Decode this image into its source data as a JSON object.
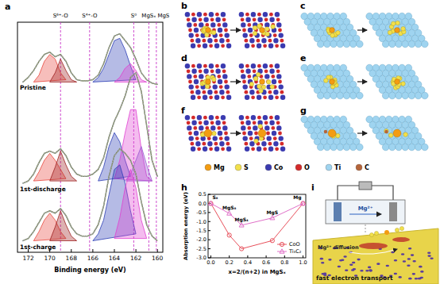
{
  "chart_data": [
    {
      "type": "line",
      "x_label": "Binding energy (eV)",
      "x": [
        172.5,
        172,
        171.5,
        171,
        170.5,
        170,
        169.5,
        169,
        168.5,
        168,
        167.5,
        167,
        166.5,
        166,
        165.5,
        165,
        164.5,
        164,
        163.5,
        163,
        162.5,
        162,
        161.5,
        161,
        160.5,
        160
      ],
      "xlim": [
        173,
        159.5
      ],
      "xticks": [
        172,
        170,
        168,
        166,
        164,
        162,
        160
      ],
      "ylim": [
        0,
        100
      ],
      "tick_labels": "x",
      "reference_lines": [
        {
          "label": "S⁶⁺-O",
          "x": 169.0
        },
        {
          "label": "S⁴⁺-O",
          "x": 166.3
        },
        {
          "label": "S⁰",
          "x": 162.2
        },
        {
          "label": "MgSₓ",
          "x": 160.8
        },
        {
          "label": "MgS",
          "x": 160.1
        }
      ],
      "series": [
        {
          "name": "Pristine",
          "color": "#6e7a3a",
          "values": [
            74,
            76,
            79,
            83,
            86,
            87,
            85,
            86,
            83,
            78,
            75,
            74.5,
            74.5,
            75,
            77,
            82,
            89,
            94,
            95,
            92,
            89,
            84,
            78,
            75,
            73.5,
            73
          ],
          "components": [
            {
              "color": "#e8463c",
              "values": [
                null,
                null,
                74,
                77,
                83,
                86,
                84,
                78,
                75,
                null,
                null,
                null,
                null,
                null,
                null,
                null,
                null,
                null,
                null,
                null,
                null,
                null,
                null,
                null,
                null,
                null
              ]
            },
            {
              "color": "#9e1f1f",
              "values": [
                null,
                null,
                null,
                null,
                null,
                74,
                78,
                84,
                79,
                75,
                74,
                null,
                null,
                null,
                null,
                null,
                null,
                null,
                null,
                null,
                null,
                null,
                null,
                null,
                null,
                null
              ]
            },
            {
              "color": "#2c3db5",
              "values": [
                null,
                null,
                null,
                null,
                null,
                null,
                null,
                null,
                null,
                null,
                null,
                null,
                null,
                74,
                76,
                80,
                86,
                92,
                93,
                88,
                81,
                75,
                null,
                null,
                null,
                null
              ]
            },
            {
              "color": "#e040d0",
              "values": [
                null,
                null,
                null,
                null,
                null,
                null,
                null,
                null,
                null,
                null,
                null,
                null,
                null,
                null,
                null,
                null,
                null,
                74,
                76,
                80,
                82,
                79,
                75,
                74,
                null,
                null
              ]
            }
          ]
        },
        {
          "name": "1st-discharge",
          "color": "#6e7a3a",
          "values": [
            30,
            31,
            34,
            39,
            43,
            44,
            43,
            45,
            42,
            37,
            34,
            33,
            33,
            34,
            36,
            41,
            50,
            57,
            62,
            68,
            76,
            78,
            70,
            55,
            40,
            33
          ],
          "components": [
            {
              "color": "#e8463c",
              "values": [
                null,
                null,
                31,
                35,
                40,
                43,
                40,
                36,
                32,
                null,
                null,
                null,
                null,
                null,
                null,
                null,
                null,
                null,
                null,
                null,
                null,
                null,
                null,
                null,
                null,
                null
              ]
            },
            {
              "color": "#9e1f1f",
              "values": [
                null,
                null,
                null,
                null,
                null,
                31,
                37,
                44,
                38,
                33,
                31,
                null,
                null,
                null,
                null,
                null,
                null,
                null,
                null,
                null,
                null,
                null,
                null,
                null,
                null,
                null
              ]
            },
            {
              "color": "#2c3db5",
              "values": [
                null,
                null,
                null,
                null,
                null,
                null,
                null,
                null,
                null,
                null,
                null,
                null,
                null,
                null,
                31,
                37,
                46,
                52,
                48,
                40,
                33,
                null,
                null,
                null,
                null,
                null
              ]
            },
            {
              "color": "#e040d0",
              "values": [
                null,
                null,
                null,
                null,
                null,
                null,
                null,
                null,
                null,
                null,
                null,
                null,
                null,
                null,
                null,
                null,
                null,
                32,
                40,
                52,
                62,
                62,
                45,
                33,
                31,
                null
              ]
            },
            {
              "color": "#9b59d0",
              "values": [
                null,
                null,
                null,
                null,
                null,
                null,
                null,
                null,
                null,
                null,
                null,
                null,
                null,
                null,
                null,
                null,
                null,
                null,
                null,
                31,
                34,
                40,
                46,
                38,
                31,
                null
              ]
            }
          ]
        },
        {
          "name": "1st-charge",
          "color": "#6e7a3a",
          "values": [
            5,
            6,
            9,
            13,
            17,
            18,
            17,
            19,
            16,
            11,
            8,
            7,
            7,
            8,
            12,
            20,
            33,
            42,
            45,
            43,
            40,
            34,
            22,
            12,
            7,
            5
          ],
          "components": [
            {
              "color": "#e8463c",
              "values": [
                null,
                null,
                5,
                9,
                14,
                17,
                14,
                9,
                6,
                null,
                null,
                null,
                null,
                null,
                null,
                null,
                null,
                null,
                null,
                null,
                null,
                null,
                null,
                null,
                null,
                null
              ]
            },
            {
              "color": "#9e1f1f",
              "values": [
                null,
                null,
                null,
                null,
                null,
                5,
                11,
                18,
                12,
                7,
                5,
                null,
                null,
                null,
                null,
                null,
                null,
                null,
                null,
                null,
                null,
                null,
                null,
                null,
                null,
                null
              ]
            },
            {
              "color": "#2c3db5",
              "values": [
                null,
                null,
                null,
                null,
                null,
                null,
                null,
                null,
                null,
                null,
                null,
                null,
                null,
                5,
                8,
                14,
                25,
                36,
                38,
                30,
                18,
                8,
                null,
                null,
                null,
                null
              ]
            },
            {
              "color": "#e040d0",
              "values": [
                null,
                null,
                null,
                null,
                null,
                null,
                null,
                null,
                null,
                null,
                null,
                null,
                null,
                null,
                null,
                null,
                null,
                6,
                15,
                28,
                36,
                28,
                14,
                6,
                null,
                null
              ]
            }
          ]
        }
      ]
    },
    {
      "type": "line",
      "x_label": "x=2/(n+2) in MgSₓ",
      "y_label": "Absorption energy (eV)",
      "x": [
        0,
        0.2,
        0.333,
        0.667,
        1.0
      ],
      "xlim": [
        -0.03,
        1.03
      ],
      "xticks": [
        {
          "value": 0,
          "label": "0.0"
        },
        0.2,
        0.4,
        0.6,
        0.8,
        {
          "value": 1,
          "label": "1.0"
        }
      ],
      "ylim": [
        -3.0,
        0.5
      ],
      "yticks": [
        0.5,
        {
          "value": 0,
          "label": "0.0"
        },
        -0.5,
        {
          "value": -1,
          "label": "-1.0"
        },
        -1.5,
        {
          "value": -2,
          "label": "-2.0"
        },
        -2.5,
        {
          "value": -3,
          "label": "-3.0"
        }
      ],
      "grid": false,
      "legend": "lower right",
      "annotations": [
        "S₈",
        "MgS₈",
        "MgS₄",
        "MgS",
        "Mg"
      ],
      "series": [
        {
          "name": "CoO",
          "color": "#e8505b",
          "marker": "circle",
          "values": [
            0,
            -1.75,
            -2.5,
            -2.05,
            0
          ]
        },
        {
          "name": "Ti₃C₂",
          "color": "#e070c8",
          "marker": "triangle",
          "values": [
            0,
            -0.55,
            -1.2,
            -0.8,
            0
          ]
        }
      ]
    }
  ],
  "figure": {
    "panel_labels": [
      "a",
      "b",
      "c",
      "d",
      "e",
      "f",
      "g",
      "h",
      "i"
    ],
    "atoms": [
      {
        "label": "Mg",
        "color": "#f39c12"
      },
      {
        "label": "S",
        "color": "#f2e04b"
      },
      {
        "label": "Co",
        "color": "#3b3bb0"
      },
      {
        "label": "O",
        "color": "#d42a2a"
      },
      {
        "label": "Ti",
        "color": "#9fd4f0"
      },
      {
        "label": "C",
        "color": "#b5653a"
      }
    ],
    "schematic": {
      "ion_label": "Mg²⁺",
      "diffusion_label": "Mg²⁺ diffusion",
      "transport_label": "fast electron transport"
    }
  }
}
